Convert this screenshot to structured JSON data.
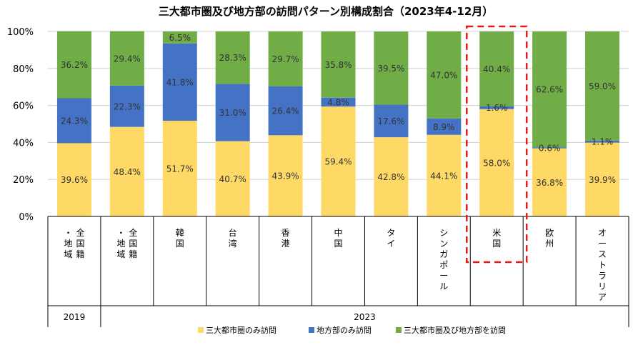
{
  "chart_data": {
    "type": "bar",
    "stacked": true,
    "percent": true,
    "title": "三大都市圏及び地方部の訪問パターン別構成割合（2023年4-12月）",
    "ylim": [
      0,
      100
    ],
    "yticks": [
      "0%",
      "20%",
      "40%",
      "60%",
      "80%",
      "100%"
    ],
    "categories": [
      "全国籍・地域",
      "全国籍・地域",
      "韓国",
      "台湾",
      "香港",
      "中国",
      "タイ",
      "シンガポール",
      "米国",
      "欧州",
      "オーストラリア"
    ],
    "year_groups": [
      {
        "label": "2019",
        "count": 1
      },
      {
        "label": "2023",
        "count": 10
      }
    ],
    "highlight_category_index": 8,
    "series": [
      {
        "name": "三大都市圏のみ訪問",
        "color": "#FFD966",
        "values": [
          39.6,
          48.4,
          51.7,
          40.7,
          43.9,
          59.4,
          42.8,
          44.1,
          58.0,
          36.8,
          39.9
        ],
        "labels": [
          "39.6%",
          "48.4%",
          "51.7%",
          "40.7%",
          "43.9%",
          "59.4%",
          "42.8%",
          "44.1%",
          "58.0%",
          "36.8%",
          "39.9%"
        ]
      },
      {
        "name": "地方部のみ訪問",
        "color": "#4472C4",
        "values": [
          24.3,
          22.3,
          41.8,
          31.0,
          26.4,
          4.8,
          17.6,
          8.9,
          1.6,
          0.6,
          1.1
        ],
        "labels": [
          "24.3%",
          "22.3%",
          "41.8%",
          "31.0%",
          "26.4%",
          "4.8%",
          "17.6%",
          "8.9%",
          "1.6%",
          "0.6%",
          "1.1%"
        ]
      },
      {
        "name": "三大都市圏及び地方部を訪問",
        "color": "#70AD47",
        "values": [
          36.2,
          29.4,
          6.5,
          28.3,
          29.7,
          35.8,
          39.5,
          47.0,
          40.4,
          62.6,
          59.0
        ],
        "labels": [
          "36.2%",
          "29.4%",
          "6.5%",
          "28.3%",
          "29.7%",
          "35.8%",
          "39.5%",
          "47.0%",
          "40.4%",
          "62.6%",
          "59.0%"
        ]
      }
    ]
  }
}
